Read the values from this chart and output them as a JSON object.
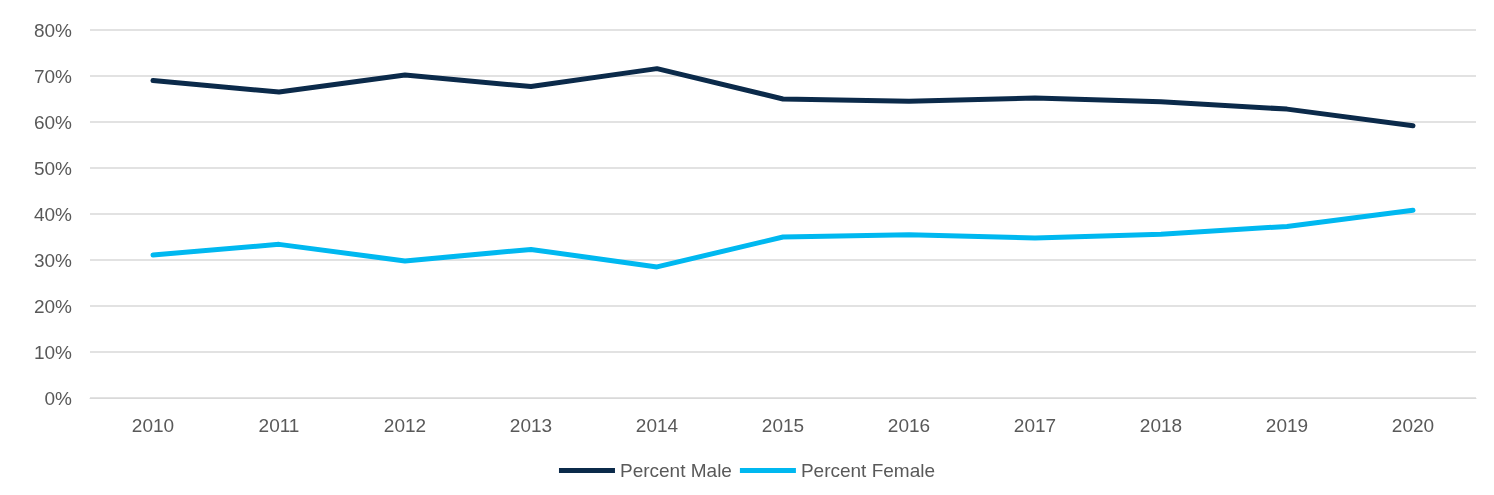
{
  "chart_data": {
    "type": "line",
    "categories": [
      "2010",
      "2011",
      "2012",
      "2013",
      "2014",
      "2015",
      "2016",
      "2017",
      "2018",
      "2019",
      "2020"
    ],
    "series": [
      {
        "name": "Percent Male",
        "color": "#0b2a4a",
        "values": [
          69.0,
          66.5,
          70.2,
          67.7,
          71.6,
          65.0,
          64.5,
          65.2,
          64.4,
          62.8,
          59.2
        ]
      },
      {
        "name": "Percent Female",
        "color": "#00b8f0",
        "values": [
          31.1,
          33.4,
          29.8,
          32.3,
          28.5,
          35.0,
          35.5,
          34.8,
          35.6,
          37.3,
          40.8
        ]
      }
    ],
    "ylim": [
      0,
      80
    ],
    "yticks": [
      {
        "value": 0,
        "label": "0%"
      },
      {
        "value": 10,
        "label": "10%"
      },
      {
        "value": 20,
        "label": "20%"
      },
      {
        "value": 30,
        "label": "30%"
      },
      {
        "value": 40,
        "label": "40%"
      },
      {
        "value": 50,
        "label": "50%"
      },
      {
        "value": 60,
        "label": "60%"
      },
      {
        "value": 70,
        "label": "70%"
      },
      {
        "value": 80,
        "label": "80%"
      }
    ],
    "grid": "y",
    "legend": "bottom",
    "marker": "none",
    "line_style": "solid"
  }
}
